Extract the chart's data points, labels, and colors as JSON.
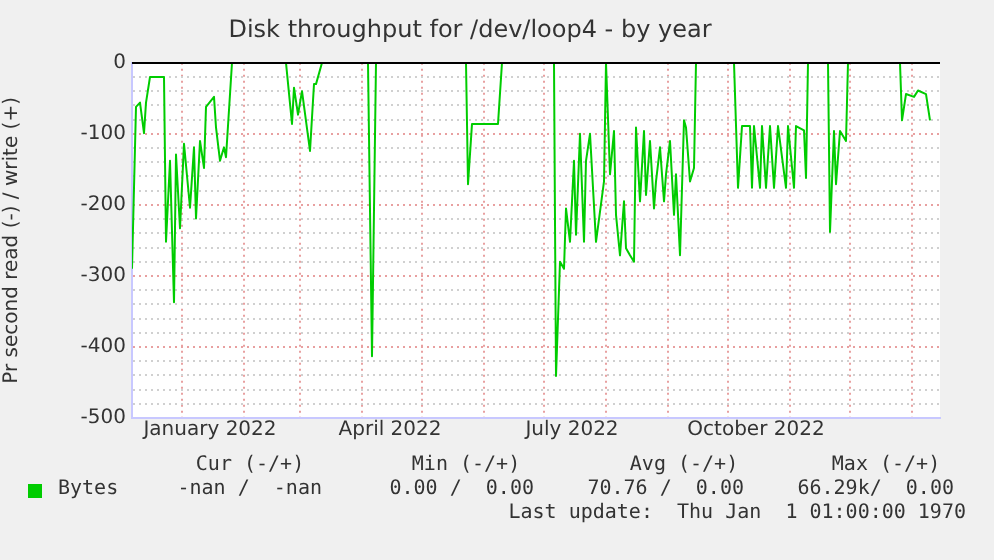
{
  "chart_data": {
    "type": "line",
    "title": "Disk throughput for /dev/loop4 - by year",
    "ylabel": "Pr second read (-) / write (+)",
    "xlim": [
      "2021-12-07",
      "2023-01-15"
    ],
    "xticks": [
      {
        "value": "2022-01-01",
        "label": null
      },
      {
        "value": "2022-01-15",
        "label": "January 2022"
      },
      {
        "value": "2022-02-01",
        "label": null
      },
      {
        "value": "2022-03-01",
        "label": null
      },
      {
        "value": "2022-04-01",
        "label": null
      },
      {
        "value": "2022-04-15",
        "label": "April 2022"
      },
      {
        "value": "2022-05-01",
        "label": null
      },
      {
        "value": "2022-06-01",
        "label": null
      },
      {
        "value": "2022-07-01",
        "label": null
      },
      {
        "value": "2022-07-15",
        "label": "July 2022"
      },
      {
        "value": "2022-08-01",
        "label": null
      },
      {
        "value": "2022-09-01",
        "label": null
      },
      {
        "value": "2022-10-01",
        "label": null
      },
      {
        "value": "2022-10-15",
        "label": "October 2022"
      },
      {
        "value": "2022-11-01",
        "label": null
      },
      {
        "value": "2022-12-01",
        "label": null
      },
      {
        "value": "2023-01-01",
        "label": null
      }
    ],
    "ylim": [
      -500,
      0
    ],
    "yticks": [
      -500,
      {
        "value": -480,
        "label": null
      },
      {
        "value": -460,
        "label": null
      },
      {
        "value": -440,
        "label": null
      },
      {
        "value": -420,
        "label": null
      },
      -400,
      {
        "value": -380,
        "label": null
      },
      {
        "value": -360,
        "label": null
      },
      {
        "value": -340,
        "label": null
      },
      {
        "value": -320,
        "label": null
      },
      -300,
      {
        "value": -280,
        "label": null
      },
      {
        "value": -260,
        "label": null
      },
      {
        "value": -240,
        "label": null
      },
      {
        "value": -220,
        "label": null
      },
      -200,
      {
        "value": -180,
        "label": null
      },
      {
        "value": -160,
        "label": null
      },
      {
        "value": -140,
        "label": null
      },
      {
        "value": -120,
        "label": null
      },
      -100,
      {
        "value": -80,
        "label": null
      },
      {
        "value": -60,
        "label": null
      },
      {
        "value": -40,
        "label": null
      },
      {
        "value": -20,
        "label": null
      },
      0
    ],
    "grid": true,
    "legend": "bottom left",
    "ref_lines": [
      {
        "axis": "y",
        "value": 0,
        "color": "#000000"
      }
    ],
    "annotations": [
      "Cur (-/+)",
      "Min (-/+)",
      "Avg (-/+)",
      "Max (-/+)",
      "-nan /  -nan",
      "0.00 /  0.00",
      "70.76 /  0.00",
      "66.29k/  0.00",
      "Last update:  Thu Jan  1 01:00:00 1970"
    ],
    "series": [
      {
        "name": "Bytes",
        "color": "#00cc00",
        "x": [
          "2021-12-07",
          "2021-12-09",
          "2021-12-11",
          "2021-12-13",
          "2021-12-14",
          "2021-12-16",
          "2021-12-23",
          "2021-12-24",
          "2021-12-26",
          "2021-12-28",
          "2021-12-29",
          "2021-12-31",
          "2022-01-02",
          "2022-01-05",
          "2022-01-07",
          "2022-01-08",
          "2022-01-10",
          "2022-01-12",
          "2022-01-13",
          "2022-01-17",
          "2022-01-18",
          "2022-01-20",
          "2022-01-22",
          "2022-01-23",
          "2022-01-26",
          "2022-02-08",
          "2022-02-22",
          "2022-02-25",
          "2022-02-26",
          "2022-02-28",
          "2022-03-02",
          "2022-03-06",
          "2022-03-08",
          "2022-03-09",
          "2022-03-12",
          "2022-03-24",
          "2022-04-04",
          "2022-04-06",
          "2022-04-08",
          "2022-05-01",
          "2022-05-23",
          "2022-05-24",
          "2022-05-26",
          "2022-06-08",
          "2022-06-10",
          "2022-06-24",
          "2022-07-06",
          "2022-07-07",
          "2022-07-09",
          "2022-07-11",
          "2022-07-12",
          "2022-07-14",
          "2022-07-16",
          "2022-07-17",
          "2022-07-19",
          "2022-07-21",
          "2022-07-22",
          "2022-07-24",
          "2022-07-27",
          "2022-07-31",
          "2022-08-01",
          "2022-08-03",
          "2022-08-05",
          "2022-08-06",
          "2022-08-08",
          "2022-08-10",
          "2022-08-11",
          "2022-08-13",
          "2022-08-15",
          "2022-08-16",
          "2022-08-18",
          "2022-08-20",
          "2022-08-21",
          "2022-08-23",
          "2022-08-25",
          "2022-08-26",
          "2022-08-28",
          "2022-08-30",
          "2022-08-31",
          "2022-09-02",
          "2022-09-04",
          "2022-09-05",
          "2022-09-07",
          "2022-09-09",
          "2022-09-10",
          "2022-09-12",
          "2022-09-14",
          "2022-09-15",
          "2022-09-25",
          "2022-10-04",
          "2022-10-06",
          "2022-10-08",
          "2022-10-12",
          "2022-10-13",
          "2022-10-14",
          "2022-10-17",
          "2022-10-18",
          "2022-10-20",
          "2022-10-22",
          "2022-10-24",
          "2022-10-26",
          "2022-10-30",
          "2022-10-31",
          "2022-11-03",
          "2022-11-04",
          "2022-11-08",
          "2022-11-09",
          "2022-11-10",
          "2022-11-15",
          "2022-11-20",
          "2022-11-21",
          "2022-11-23",
          "2022-11-24",
          "2022-11-26",
          "2022-11-29",
          "2022-11-30",
          "2022-12-13",
          "2022-12-26",
          "2022-12-27",
          "2022-12-29",
          "2023-01-02",
          "2023-01-04",
          "2023-01-08",
          "2023-01-10"
        ],
        "values": [
          -290,
          -62,
          -56,
          -99,
          -56,
          -20,
          -20,
          -252,
          -138,
          -337,
          -129,
          -233,
          -114,
          -204,
          -119,
          -219,
          -110,
          -148,
          -62,
          -48,
          -91,
          -138,
          -119,
          -133,
          0,
          null,
          0,
          -86,
          -35,
          -73,
          -40,
          -124,
          -30,
          -30,
          0,
          null,
          0,
          -413,
          0,
          null,
          0,
          -171,
          -86,
          -86,
          0,
          null,
          0,
          -441,
          -280,
          -290,
          -205,
          -252,
          -138,
          -242,
          -100,
          -252,
          -138,
          -100,
          -252,
          -167,
          0,
          -157,
          -96,
          -214,
          -271,
          -195,
          -261,
          -271,
          -280,
          -91,
          -195,
          -96,
          -186,
          -110,
          -205,
          -167,
          -119,
          -195,
          -157,
          -110,
          -214,
          -157,
          -271,
          -81,
          -91,
          -167,
          -148,
          0,
          null,
          0,
          -176,
          -89,
          -89,
          -176,
          -89,
          -176,
          -89,
          -176,
          -89,
          -176,
          -89,
          -176,
          -89,
          -176,
          -89,
          -95,
          -162,
          0,
          null,
          0,
          -238,
          -96,
          -171,
          -96,
          -110,
          0,
          null,
          0,
          -81,
          -44,
          -48,
          -39,
          -44,
          -81
        ]
      }
    ]
  }
}
